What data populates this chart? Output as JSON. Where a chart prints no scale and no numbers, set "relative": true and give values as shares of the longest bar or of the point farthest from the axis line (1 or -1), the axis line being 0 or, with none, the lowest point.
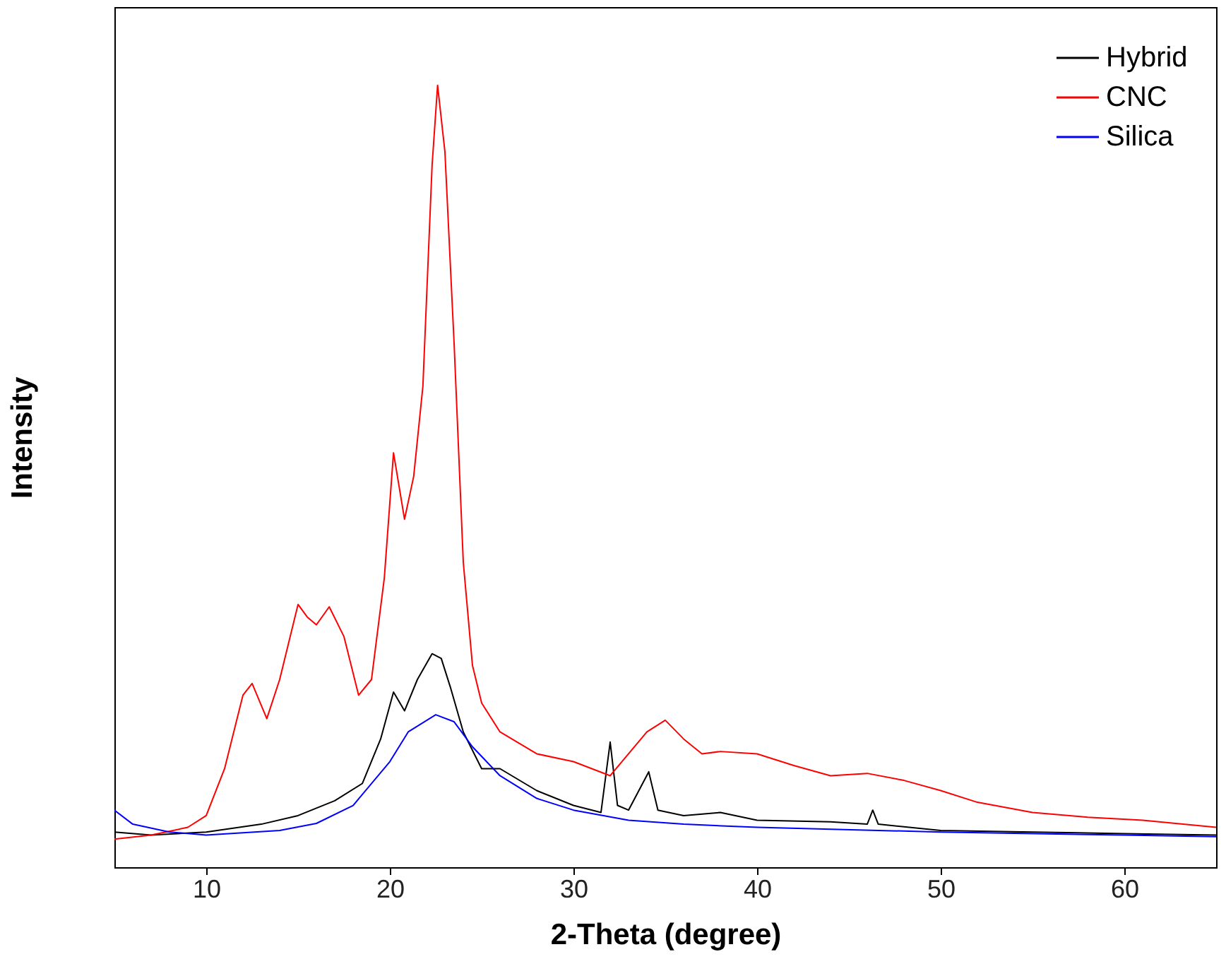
{
  "chart_data": {
    "type": "line",
    "relative": true,
    "xlabel": "2-Theta (degree)",
    "ylabel": "Intensity",
    "xlim": [
      5,
      65
    ],
    "xticks": [
      10,
      20,
      30,
      40,
      50,
      60
    ],
    "legend": "top right",
    "grid": false,
    "marker": "none",
    "line_style": "solid",
    "series": [
      {
        "name": "Hybrid",
        "color": "#000000",
        "x": [
          5,
          7,
          10,
          13,
          15,
          17,
          18.5,
          19.5,
          20.2,
          20.8,
          21.5,
          22.3,
          22.8,
          23.3,
          24,
          25,
          26,
          28,
          30,
          31.5,
          32,
          32.4,
          33,
          34.1,
          34.6,
          36,
          38,
          40,
          44,
          46,
          46.3,
          46.6,
          50,
          55,
          60,
          65
        ],
        "values": [
          0.045,
          0.041,
          0.045,
          0.055,
          0.066,
          0.085,
          0.107,
          0.164,
          0.224,
          0.2,
          0.24,
          0.273,
          0.267,
          0.23,
          0.173,
          0.126,
          0.126,
          0.098,
          0.079,
          0.07,
          0.16,
          0.079,
          0.073,
          0.122,
          0.073,
          0.066,
          0.07,
          0.06,
          0.058,
          0.055,
          0.073,
          0.055,
          0.047,
          0.045,
          0.043,
          0.041
        ]
      },
      {
        "name": "CNC",
        "color": "#ff0000",
        "x": [
          5,
          7,
          9,
          10,
          11,
          12,
          12.5,
          13.3,
          14,
          15,
          15.5,
          16,
          16.7,
          17.5,
          18.3,
          19,
          19.7,
          20.2,
          20.8,
          21.3,
          21.8,
          22.3,
          22.6,
          23,
          23.5,
          24,
          24.5,
          25,
          26,
          28,
          30,
          32,
          33,
          34,
          35,
          36,
          37,
          38,
          40,
          42,
          44,
          46,
          48,
          50,
          52,
          55,
          58,
          61,
          65
        ],
        "values": [
          0.036,
          0.041,
          0.051,
          0.066,
          0.126,
          0.22,
          0.235,
          0.19,
          0.24,
          0.336,
          0.32,
          0.31,
          0.333,
          0.295,
          0.22,
          0.24,
          0.37,
          0.53,
          0.445,
          0.5,
          0.615,
          0.897,
          1.0,
          0.915,
          0.67,
          0.39,
          0.258,
          0.21,
          0.173,
          0.145,
          0.135,
          0.117,
          0.145,
          0.173,
          0.188,
          0.164,
          0.145,
          0.148,
          0.145,
          0.13,
          0.117,
          0.12,
          0.111,
          0.098,
          0.083,
          0.07,
          0.064,
          0.06,
          0.051
        ]
      },
      {
        "name": "Silica",
        "color": "#0000ff",
        "x": [
          5,
          6,
          8,
          10,
          14,
          16,
          18,
          20,
          21,
          22.5,
          23.5,
          24.5,
          26,
          28,
          30,
          33,
          36,
          40,
          50,
          60,
          65
        ],
        "values": [
          0.073,
          0.055,
          0.045,
          0.041,
          0.047,
          0.056,
          0.079,
          0.135,
          0.173,
          0.195,
          0.186,
          0.154,
          0.117,
          0.088,
          0.073,
          0.06,
          0.055,
          0.051,
          0.045,
          0.041,
          0.039
        ]
      }
    ]
  }
}
